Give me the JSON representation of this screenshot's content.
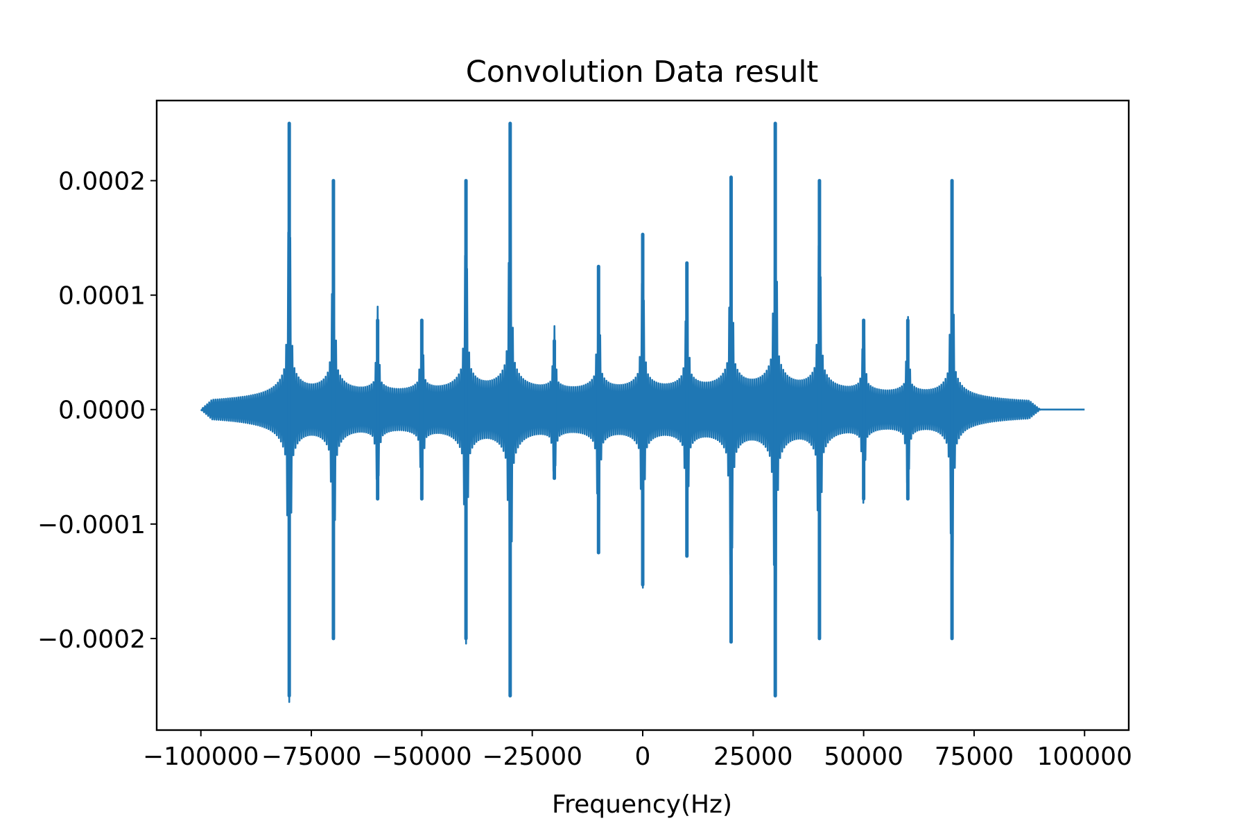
{
  "chart_data": {
    "type": "line",
    "title": "Convolution Data result",
    "xlabel": "Frequency(Hz)",
    "ylabel": "",
    "xlim": [
      -110000,
      110000
    ],
    "ylim": [
      -0.00028,
      0.00027
    ],
    "grid": false,
    "legend": "none",
    "line_color": "#1f77b4",
    "x_ticks": [
      -100000,
      -75000,
      -50000,
      -25000,
      0,
      25000,
      50000,
      75000,
      100000
    ],
    "x_tick_labels": [
      "−100000",
      "−75000",
      "−50000",
      "−25000",
      "0",
      "25000",
      "50000",
      "75000",
      "100000"
    ],
    "y_ticks": [
      -0.0002,
      -0.0001,
      0.0,
      0.0001,
      0.0002
    ],
    "y_tick_labels": [
      "−0.0002",
      "−0.0001",
      "0.0000",
      "0.0001",
      "0.0002"
    ],
    "x_range": [
      -100000,
      100000
    ],
    "flat_after_x": 90000,
    "peaks": [
      {
        "x": -80000,
        "amplitude": 0.00025
      },
      {
        "x": -70000,
        "amplitude": 0.0002
      },
      {
        "x": -60000,
        "amplitude": 7.8e-05
      },
      {
        "x": -50000,
        "amplitude": 7.8e-05
      },
      {
        "x": -40000,
        "amplitude": 0.0002
      },
      {
        "x": -30000,
        "amplitude": 0.00025
      },
      {
        "x": -20000,
        "amplitude": 6e-05
      },
      {
        "x": -10000,
        "amplitude": 0.000125
      },
      {
        "x": 0,
        "amplitude": 0.000153
      },
      {
        "x": 10000,
        "amplitude": 0.000128
      },
      {
        "x": 20000,
        "amplitude": 0.000203
      },
      {
        "x": 30000,
        "amplitude": 0.00025
      },
      {
        "x": 40000,
        "amplitude": 0.0002
      },
      {
        "x": 50000,
        "amplitude": 7.8e-05
      },
      {
        "x": 60000,
        "amplitude": 7.8e-05
      },
      {
        "x": 70000,
        "amplitude": 0.0002
      }
    ]
  }
}
